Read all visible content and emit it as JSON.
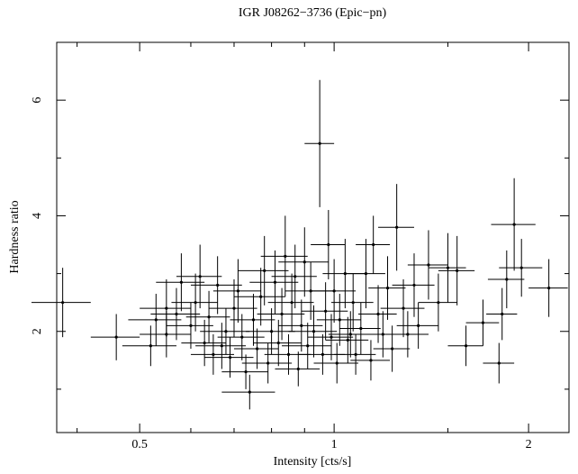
{
  "chart_data": {
    "type": "errorbar-scatter",
    "title": "IGR J08262−3736 (Epic−pn)",
    "x_label": "Intensity [cts/s]",
    "y_label": "Hardness ratio",
    "xscale": "log",
    "xlim": [
      0.372,
      2.31
    ],
    "ylim": [
      0.25,
      7.0
    ],
    "xticks": [
      0.5,
      1,
      2
    ],
    "yticks": [
      2,
      4,
      6
    ],
    "minor_xticks": [
      0.4,
      0.6,
      0.7,
      0.8,
      0.9,
      1.5
    ],
    "minor_yticks": [
      1,
      3,
      5
    ],
    "series": [
      {
        "color": "#000000",
        "x": [
          0.38,
          0.46,
          0.52,
          0.55,
          0.55,
          0.57,
          0.58,
          0.6,
          0.61,
          0.62,
          0.63,
          0.64,
          0.65,
          0.66,
          0.68,
          0.69,
          0.7,
          0.71,
          0.72,
          0.73,
          0.74,
          0.75,
          0.76,
          0.77,
          0.78,
          0.79,
          0.8,
          0.81,
          0.82,
          0.83,
          0.84,
          0.85,
          0.86,
          0.87,
          0.88,
          0.89,
          0.9,
          0.91,
          0.92,
          0.93,
          0.95,
          0.96,
          0.97,
          0.98,
          0.99,
          1.0,
          1.01,
          1.02,
          1.04,
          1.05,
          1.07,
          1.08,
          1.1,
          1.12,
          1.14,
          1.15,
          1.17,
          1.19,
          1.21,
          1.23,
          1.25,
          1.28,
          1.3,
          1.33,
          1.35,
          1.4,
          1.45,
          1.5,
          1.55,
          1.6,
          1.7,
          1.8,
          1.82,
          1.85,
          1.9,
          1.95,
          2.15,
          0.53,
          0.67,
          1.06
        ],
        "y": [
          2.5,
          1.9,
          1.75,
          2.4,
          1.95,
          2.3,
          2.85,
          2.1,
          2.5,
          2.95,
          1.8,
          2.25,
          1.6,
          2.8,
          2.0,
          1.55,
          2.4,
          2.7,
          1.9,
          1.3,
          0.95,
          2.2,
          1.7,
          2.6,
          3.05,
          1.45,
          2.0,
          2.85,
          1.8,
          2.3,
          3.3,
          1.6,
          2.5,
          2.95,
          1.35,
          2.1,
          3.2,
          1.75,
          2.7,
          2.0,
          5.25,
          1.6,
          2.35,
          3.5,
          1.9,
          2.7,
          1.45,
          2.2,
          3.0,
          1.85,
          2.5,
          1.6,
          2.05,
          3.0,
          1.5,
          3.5,
          2.3,
          1.95,
          2.75,
          1.7,
          3.8,
          2.4,
          1.95,
          2.8,
          2.1,
          3.15,
          2.5,
          3.1,
          3.05,
          1.75,
          2.15,
          1.45,
          2.3,
          2.9,
          3.85,
          3.1,
          2.75,
          2.2,
          1.75,
          1.95
        ],
        "xerr": [
          0.04,
          0.04,
          0.05,
          0.05,
          0.05,
          0.05,
          0.05,
          0.05,
          0.05,
          0.05,
          0.05,
          0.05,
          0.05,
          0.06,
          0.06,
          0.06,
          0.06,
          0.06,
          0.06,
          0.06,
          0.07,
          0.06,
          0.06,
          0.07,
          0.07,
          0.07,
          0.07,
          0.07,
          0.07,
          0.07,
          0.07,
          0.07,
          0.07,
          0.07,
          0.07,
          0.07,
          0.08,
          0.08,
          0.08,
          0.08,
          0.05,
          0.08,
          0.08,
          0.06,
          0.08,
          0.08,
          0.08,
          0.08,
          0.08,
          0.08,
          0.08,
          0.08,
          0.08,
          0.08,
          0.08,
          0.07,
          0.08,
          0.08,
          0.08,
          0.08,
          0.08,
          0.1,
          0.1,
          0.1,
          0.1,
          0.1,
          0.1,
          0.1,
          0.1,
          0.1,
          0.1,
          0.1,
          0.1,
          0.12,
          0.15,
          0.15,
          0.15,
          0.05,
          0.06,
          0.08
        ],
        "yerr": [
          0.6,
          0.4,
          0.35,
          0.5,
          0.4,
          0.45,
          0.5,
          0.4,
          0.5,
          0.55,
          0.4,
          0.45,
          0.35,
          0.5,
          0.4,
          0.35,
          0.5,
          0.55,
          0.4,
          0.3,
          0.3,
          0.45,
          0.35,
          0.5,
          0.6,
          0.35,
          0.4,
          0.55,
          0.4,
          0.45,
          0.7,
          0.35,
          0.5,
          0.55,
          0.3,
          0.45,
          0.6,
          0.4,
          0.5,
          0.45,
          1.1,
          0.35,
          0.5,
          0.6,
          0.4,
          0.55,
          0.35,
          0.45,
          0.6,
          0.4,
          0.5,
          0.35,
          0.45,
          0.6,
          0.35,
          0.5,
          0.5,
          0.4,
          0.55,
          0.4,
          0.75,
          0.5,
          0.4,
          0.55,
          0.4,
          0.6,
          0.5,
          0.6,
          0.6,
          0.35,
          0.4,
          0.35,
          0.45,
          0.5,
          0.8,
          0.5,
          0.5,
          0.45,
          0.4,
          0.4
        ]
      }
    ]
  }
}
